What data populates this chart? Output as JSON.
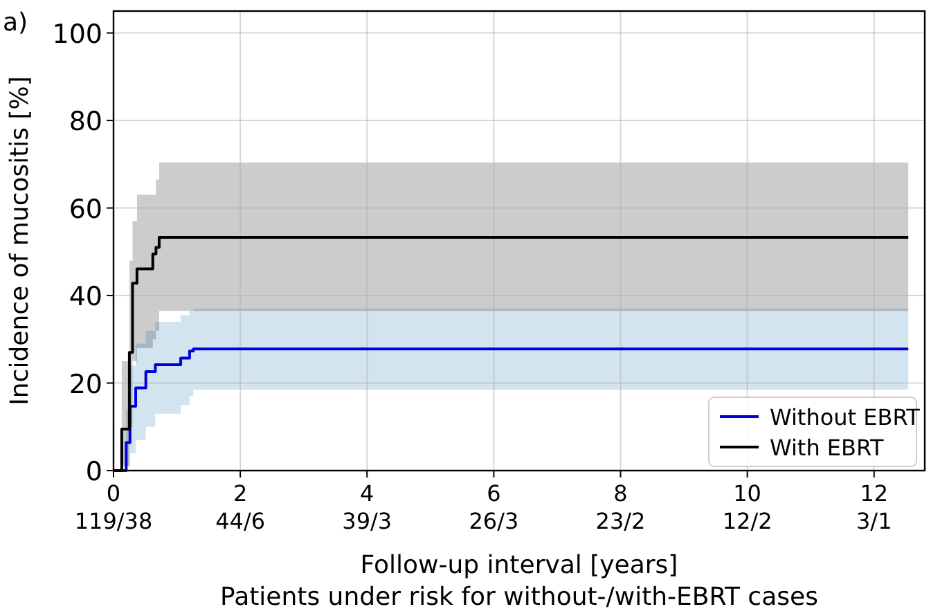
{
  "chart_data": {
    "type": "step",
    "xlabel": "Follow-up interval [years]",
    "ylabel": "Incidence of mucositis [%]",
    "annotations": [
      "a)",
      "Patients under risk for without-/with-EBRT cases",
      "119/38",
      "44/6",
      "39/3",
      "26/3",
      "23/2",
      "12/2",
      "3/1"
    ],
    "xlim": [
      0,
      12.8
    ],
    "ylim": [
      0,
      105
    ],
    "xticks": [
      0,
      2,
      4,
      6,
      8,
      10,
      12
    ],
    "yticks": [
      0,
      20,
      40,
      60,
      80,
      100
    ],
    "grid": true,
    "legend": "bottom right",
    "marker": "none",
    "line_style": "solid",
    "series": [
      {
        "name": "Without EBRT",
        "color": "#0000dd",
        "x": [
          0,
          0.09,
          0.2,
          0.26,
          0.35,
          0.51,
          0.66,
          1.06,
          1.2,
          1.26,
          12.54
        ],
        "values": [
          0,
          0,
          6.4,
          14.7,
          18.9,
          22.6,
          24.2,
          25.7,
          27.3,
          27.8,
          27.8
        ],
        "lower": [
          0,
          0,
          1,
          4,
          7,
          10,
          13,
          15,
          17,
          18.5,
          18.5
        ],
        "upper": [
          0,
          0,
          14,
          24,
          29,
          32,
          34,
          35.5,
          36.5,
          37,
          37
        ]
      },
      {
        "name": "With EBRT",
        "color": "#000000",
        "x": [
          0,
          0.06,
          0.13,
          0.25,
          0.3,
          0.37,
          0.62,
          0.67,
          0.72,
          12.54
        ],
        "values": [
          0,
          0,
          9.5,
          27,
          42.8,
          46.1,
          49.5,
          51,
          53.3,
          53.3
        ],
        "lower": [
          0,
          0,
          1,
          10,
          25,
          28,
          30,
          32,
          36.5,
          36.5
        ],
        "upper": [
          0,
          0,
          25,
          48,
          57,
          63,
          63,
          66.5,
          70.4,
          70.4
        ]
      }
    ]
  }
}
